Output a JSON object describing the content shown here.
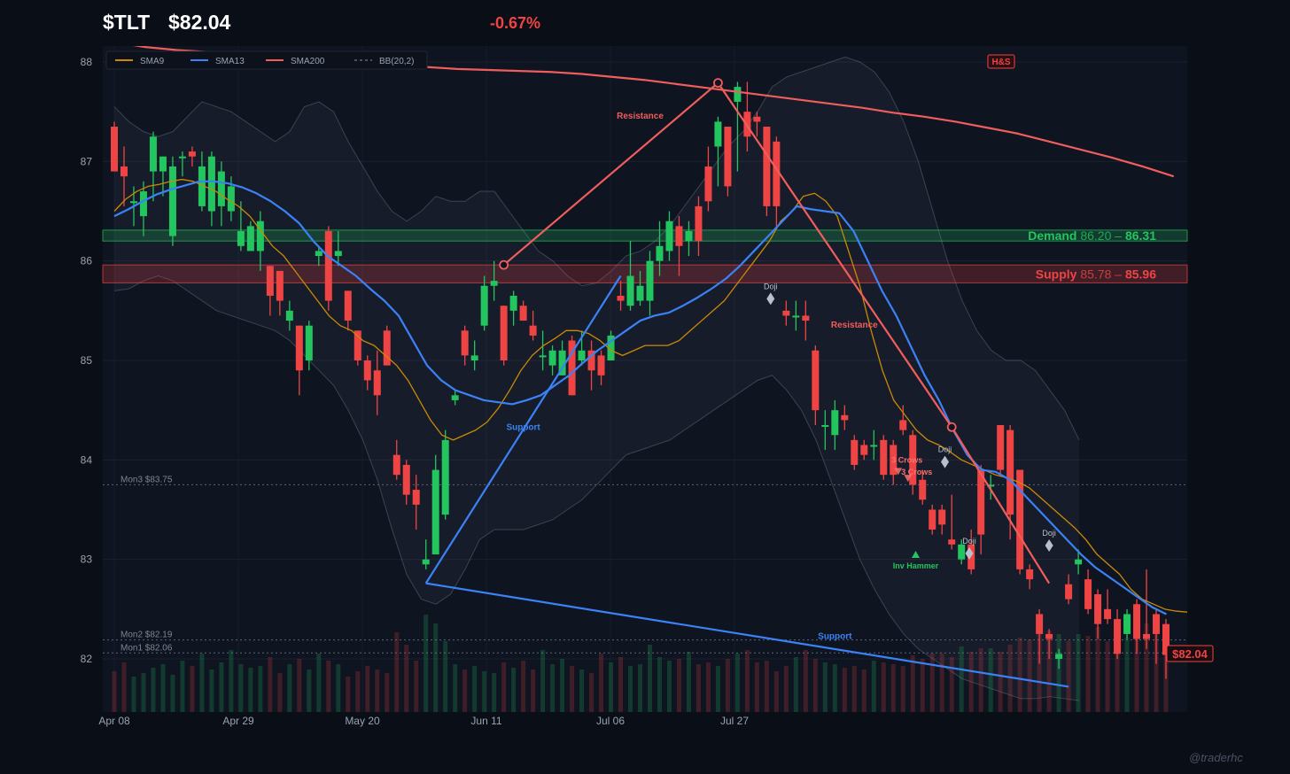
{
  "header": {
    "symbol": "$TLT",
    "price": "$82.04",
    "change": "-0.67%"
  },
  "watermark": "@traderhc",
  "colors": {
    "up": "#22c55e",
    "down": "#ef4444",
    "sma9": "#ca8a04",
    "sma13": "#3b82f6",
    "sma200": "#f05d5d",
    "bb": "#8b93a5",
    "demand": "#22c55e",
    "supply": "#ef4444"
  },
  "legend": [
    {
      "name": "SMA9",
      "color": "#ca8a04",
      "dash": false
    },
    {
      "name": "SMA13",
      "color": "#3b82f6",
      "dash": false
    },
    {
      "name": "SMA200",
      "color": "#f05d5d",
      "dash": false
    },
    {
      "name": "BB(20,2)",
      "color": "#8b93a5",
      "dash": true
    }
  ],
  "badge": "H&S",
  "chart_data": {
    "type": "candlestick",
    "x_tick_labels": [
      "Apr 08",
      "Apr 29",
      "May 20",
      "Jun 11",
      "Jul 06",
      "Jul 27"
    ],
    "x_tick_index": [
      0,
      14,
      28,
      42,
      56,
      70
    ],
    "y_ticks": [
      82,
      83,
      84,
      85,
      86,
      87,
      88
    ],
    "ylim": [
      81.48,
      88.15
    ],
    "candles": [
      [
        87.35,
        86.9,
        87.4,
        86.9
      ],
      [
        86.95,
        86.85,
        87.15,
        86.55
      ],
      [
        86.6,
        86.6,
        86.75,
        86.35
      ],
      [
        86.45,
        86.7,
        86.8,
        86.25
      ],
      [
        86.9,
        87.25,
        87.3,
        86.6
      ],
      [
        86.9,
        87.05,
        87.05,
        86.65
      ],
      [
        86.25,
        86.95,
        87.05,
        86.15
      ],
      [
        87.05,
        87.05,
        87.1,
        86.85
      ],
      [
        87.1,
        87.05,
        87.15,
        86.95
      ],
      [
        86.55,
        86.95,
        87.1,
        86.5
      ],
      [
        86.5,
        87.05,
        87.1,
        86.35
      ],
      [
        86.55,
        86.9,
        87.0,
        86.35
      ],
      [
        86.5,
        86.75,
        86.85,
        86.4
      ],
      [
        86.15,
        86.3,
        86.6,
        86.1
      ],
      [
        86.1,
        86.35,
        86.4,
        86.1
      ],
      [
        86.1,
        86.4,
        86.5,
        85.9
      ],
      [
        85.95,
        85.65,
        85.95,
        85.45
      ],
      [
        85.9,
        85.6,
        85.9,
        85.45
      ],
      [
        85.4,
        85.5,
        85.6,
        85.3
      ],
      [
        85.35,
        84.9,
        85.35,
        84.65
      ],
      [
        85.0,
        85.35,
        85.4,
        84.9
      ],
      [
        86.05,
        86.1,
        86.15,
        85.95
      ],
      [
        86.3,
        85.6,
        86.35,
        85.5
      ],
      [
        86.05,
        86.1,
        86.3,
        85.95
      ],
      [
        85.7,
        85.4,
        85.7,
        85.3
      ],
      [
        85.3,
        85.0,
        85.3,
        84.95
      ],
      [
        85.0,
        84.8,
        85.05,
        84.7
      ],
      [
        84.9,
        84.65,
        85.1,
        84.45
      ],
      [
        85.3,
        84.95,
        85.35,
        84.95
      ],
      [
        84.05,
        83.85,
        84.2,
        83.8
      ],
      [
        83.95,
        83.65,
        84.0,
        83.55
      ],
      [
        83.7,
        83.55,
        83.85,
        83.3
      ],
      [
        82.95,
        83.0,
        83.2,
        82.9
      ],
      [
        83.05,
        83.9,
        84.05,
        83.05
      ],
      [
        83.45,
        84.2,
        84.3,
        83.4
      ],
      [
        84.6,
        84.65,
        84.7,
        84.55
      ],
      [
        85.3,
        85.05,
        85.35,
        84.95
      ],
      [
        85.0,
        85.05,
        85.2,
        84.9
      ],
      [
        85.35,
        85.75,
        85.85,
        85.3
      ],
      [
        85.75,
        85.8,
        86.0,
        85.6
      ],
      [
        85.55,
        85.0,
        85.55,
        84.95
      ],
      [
        85.5,
        85.65,
        85.7,
        85.35
      ],
      [
        85.55,
        85.4,
        85.6,
        85.4
      ],
      [
        85.35,
        85.25,
        85.5,
        85.2
      ],
      [
        85.05,
        85.05,
        85.3,
        84.9
      ],
      [
        84.95,
        85.1,
        85.15,
        84.85
      ],
      [
        84.85,
        85.1,
        85.2,
        84.85
      ],
      [
        85.2,
        84.65,
        85.25,
        84.65
      ],
      [
        85.0,
        85.1,
        85.3,
        84.95
      ],
      [
        85.1,
        84.9,
        85.2,
        84.7
      ],
      [
        85.05,
        84.85,
        85.1,
        84.75
      ],
      [
        85.0,
        85.25,
        85.3,
        85.0
      ],
      [
        85.65,
        85.6,
        85.8,
        85.5
      ],
      [
        85.55,
        85.85,
        86.2,
        85.5
      ],
      [
        85.6,
        85.75,
        85.9,
        85.55
      ],
      [
        85.6,
        86.0,
        86.1,
        85.45
      ],
      [
        86.0,
        86.15,
        86.4,
        85.85
      ],
      [
        86.1,
        86.4,
        86.5,
        86.0
      ],
      [
        86.35,
        86.15,
        86.45,
        85.85
      ],
      [
        86.2,
        86.3,
        86.4,
        86.05
      ],
      [
        86.55,
        86.2,
        86.65,
        86.05
      ],
      [
        86.95,
        86.6,
        87.15,
        86.5
      ],
      [
        87.15,
        87.4,
        87.45,
        86.75
      ],
      [
        87.35,
        86.75,
        87.35,
        86.65
      ],
      [
        87.6,
        87.75,
        87.8,
        86.9
      ],
      [
        87.5,
        87.25,
        87.8,
        87.1
      ],
      [
        87.45,
        87.4,
        87.5,
        87.25
      ],
      [
        87.35,
        86.55,
        87.35,
        86.45
      ],
      [
        87.2,
        86.55,
        87.25,
        86.35
      ],
      [
        85.5,
        85.45,
        85.6,
        85.35
      ],
      [
        85.45,
        85.45,
        85.6,
        85.3
      ],
      [
        85.45,
        85.4,
        85.6,
        85.2
      ],
      [
        85.1,
        84.5,
        85.15,
        84.35
      ],
      [
        84.35,
        84.35,
        84.5,
        84.1
      ],
      [
        84.25,
        84.5,
        84.6,
        84.1
      ],
      [
        84.45,
        84.4,
        84.55,
        84.3
      ],
      [
        84.2,
        83.95,
        84.25,
        83.9
      ],
      [
        84.15,
        84.05,
        84.2,
        84.0
      ],
      [
        84.15,
        84.15,
        84.3,
        84.0
      ],
      [
        84.2,
        83.85,
        84.25,
        83.8
      ],
      [
        84.15,
        83.85,
        84.2,
        83.75
      ],
      [
        84.4,
        84.3,
        84.55,
        84.25
      ],
      [
        84.25,
        83.75,
        84.3,
        83.65
      ],
      [
        83.8,
        83.6,
        83.9,
        83.55
      ],
      [
        83.5,
        83.3,
        83.55,
        83.25
      ],
      [
        83.5,
        83.35,
        83.55,
        83.25
      ],
      [
        83.2,
        83.15,
        83.65,
        83.1
      ],
      [
        83.0,
        83.15,
        83.2,
        82.95
      ],
      [
        83.15,
        82.9,
        83.3,
        82.85
      ],
      [
        83.9,
        83.25,
        83.95,
        83.05
      ],
      [
        83.75,
        83.75,
        83.85,
        83.6
      ],
      [
        84.35,
        83.9,
        84.35,
        83.85
      ],
      [
        84.3,
        83.45,
        84.35,
        83.2
      ],
      [
        83.9,
        82.9,
        83.9,
        82.85
      ],
      [
        82.9,
        82.8,
        82.95,
        82.7
      ],
      [
        82.45,
        82.25,
        82.5,
        81.95
      ],
      [
        82.25,
        82.2,
        82.3,
        82.0
      ],
      [
        82.0,
        82.05,
        82.1,
        81.9
      ],
      [
        82.75,
        82.6,
        82.85,
        82.55
      ],
      [
        82.95,
        83.0,
        83.1,
        82.85
      ],
      [
        82.8,
        82.5,
        82.9,
        82.45
      ],
      [
        82.65,
        82.35,
        82.7,
        82.2
      ],
      [
        82.5,
        82.4,
        82.7,
        82.35
      ],
      [
        82.4,
        82.05,
        82.5,
        82.0
      ],
      [
        82.25,
        82.45,
        82.5,
        82.2
      ],
      [
        82.55,
        82.2,
        82.6,
        82.05
      ],
      [
        82.25,
        82.2,
        82.9,
        82.1
      ],
      [
        82.45,
        82.25,
        82.5,
        81.95
      ],
      [
        82.35,
        82.04,
        82.4,
        81.8
      ]
    ],
    "volume": [
      23,
      28,
      20,
      22,
      25,
      27,
      21,
      29,
      26,
      33,
      24,
      28,
      35,
      27,
      25,
      26,
      31,
      22,
      27,
      30,
      24,
      33,
      29,
      27,
      20,
      23,
      26,
      24,
      22,
      45,
      38,
      29,
      55,
      50,
      40,
      27,
      24,
      26,
      23,
      22,
      28,
      25,
      29,
      24,
      35,
      27,
      30,
      26,
      24,
      22,
      33,
      28,
      31,
      26,
      27,
      38,
      31,
      29,
      30,
      34,
      27,
      28,
      26,
      30,
      33,
      35,
      28,
      29,
      23,
      26,
      31,
      35,
      30,
      28,
      27,
      25,
      26,
      24,
      29,
      28,
      27,
      26,
      32,
      30,
      33,
      33,
      31,
      37,
      34,
      36,
      36,
      34,
      38,
      42,
      41,
      45,
      46,
      44,
      40,
      44,
      43,
      48,
      40,
      41,
      42,
      50,
      50,
      47,
      42
    ],
    "sma9": [
      86.5,
      86.62,
      86.7,
      86.75,
      86.77,
      86.8,
      86.82,
      86.8,
      86.75,
      86.7,
      86.62,
      86.55,
      86.45,
      86.3,
      86.15,
      86.05,
      85.9,
      85.75,
      85.6,
      85.45,
      85.35,
      85.3,
      85.2,
      85.15,
      85.05,
      84.95,
      84.8,
      84.6,
      84.4,
      84.25,
      84.2,
      84.25,
      84.3,
      84.38,
      84.52,
      84.7,
      84.9,
      85.05,
      85.15,
      85.22,
      85.3,
      85.3,
      85.27,
      85.2,
      85.1,
      85.05,
      85.1,
      85.15,
      85.15,
      85.15,
      85.2,
      85.3,
      85.4,
      85.5,
      85.6,
      85.75,
      85.9,
      86.05,
      86.2,
      86.4,
      86.5,
      86.65,
      86.68,
      86.6,
      86.45,
      86.1,
      85.75,
      85.3,
      84.9,
      84.6,
      84.45,
      84.3,
      84.2,
      84.15,
      84.08,
      84.0,
      83.95,
      83.9,
      83.85,
      83.82,
      83.78,
      83.72,
      83.62,
      83.52,
      83.42,
      83.32,
      83.2,
      83.05,
      82.95,
      82.85,
      82.7,
      82.6,
      82.55,
      82.5,
      82.48,
      82.47
    ],
    "sma13": [
      86.45,
      86.52,
      86.6,
      86.67,
      86.72,
      86.76,
      86.8,
      86.8,
      86.78,
      86.74,
      86.68,
      86.6,
      86.5,
      86.38,
      86.2,
      86.05,
      85.95,
      85.85,
      85.72,
      85.6,
      85.45,
      85.2,
      84.95,
      84.8,
      84.7,
      84.65,
      84.6,
      84.58,
      84.56,
      84.6,
      84.65,
      84.75,
      84.85,
      84.98,
      85.1,
      85.2,
      85.3,
      85.4,
      85.45,
      85.48,
      85.55,
      85.63,
      85.72,
      85.82,
      85.95,
      86.1,
      86.25,
      86.4,
      86.55,
      86.52,
      86.5,
      86.48,
      86.3,
      86.0,
      85.7,
      85.45,
      85.15,
      84.85,
      84.6,
      84.3,
      84.05,
      83.9,
      83.88,
      83.8,
      83.65,
      83.5,
      83.35,
      83.2,
      83.05,
      82.92,
      82.82,
      82.72,
      82.62,
      82.52,
      82.45
    ],
    "sma200": [
      88.2,
      88.15,
      88.12,
      88.1,
      88.08,
      88.05,
      88.02,
      88.0,
      87.98,
      87.96,
      87.95,
      87.93,
      87.92,
      87.91,
      87.9,
      87.88,
      87.85,
      87.82,
      87.78,
      87.74,
      87.7,
      87.66,
      87.62,
      87.58,
      87.54,
      87.49,
      87.45,
      87.4,
      87.34,
      87.28,
      87.2,
      87.12,
      87.04,
      86.95,
      86.85
    ],
    "bb_upper": [
      87.55,
      87.4,
      87.3,
      87.25,
      87.3,
      87.45,
      87.6,
      87.55,
      87.5,
      87.4,
      87.3,
      87.2,
      87.3,
      87.55,
      87.6,
      87.5,
      87.2,
      86.95,
      86.7,
      86.5,
      86.4,
      86.5,
      86.65,
      86.6,
      86.6,
      86.7,
      86.7,
      86.5,
      86.3,
      86.1,
      86.0,
      85.85,
      85.75,
      85.78,
      85.9,
      86.05,
      86.1,
      86.2,
      86.35,
      86.55,
      86.75,
      86.95,
      87.15,
      87.3,
      87.5,
      87.75,
      87.85,
      87.9,
      87.95,
      88.0,
      88.05,
      88.0,
      87.9,
      87.7,
      87.4,
      87.0,
      86.5,
      86.0,
      85.6,
      85.3,
      85.1,
      85.0,
      85.0,
      84.9,
      84.7,
      84.5,
      84.2
    ],
    "bb_lower": [
      85.7,
      85.72,
      85.8,
      85.85,
      85.8,
      85.7,
      85.6,
      85.5,
      85.45,
      85.4,
      85.35,
      85.3,
      85.2,
      85.05,
      84.9,
      84.75,
      84.5,
      84.2,
      83.8,
      83.3,
      82.85,
      82.6,
      82.55,
      82.65,
      82.9,
      83.2,
      83.3,
      83.3,
      83.3,
      83.35,
      83.4,
      83.5,
      83.6,
      83.75,
      83.9,
      84.05,
      84.1,
      84.15,
      84.2,
      84.3,
      84.4,
      84.5,
      84.6,
      84.7,
      84.8,
      84.85,
      84.7,
      84.5,
      84.2,
      83.8,
      83.4,
      83.0,
      82.7,
      82.45,
      82.25,
      82.1,
      82.0,
      81.9,
      81.8,
      81.75,
      81.7,
      81.65,
      81.6,
      81.6,
      81.62,
      81.6,
      81.58
    ],
    "zones": [
      {
        "name": "Demand",
        "low": 86.2,
        "high": 86.31,
        "label_prefix": "Demand",
        "label_range": "86.20 – ",
        "label_high": "86.31",
        "color": "#22c55e"
      },
      {
        "name": "Supply",
        "low": 85.78,
        "high": 85.96,
        "label_prefix": "Supply",
        "label_range": "85.78 – ",
        "label_high": "85.96",
        "color": "#ef4444"
      }
    ],
    "levels": [
      {
        "label": "Mon3 $83.75",
        "value": 83.75
      },
      {
        "label": "Mon2 $82.19",
        "value": 82.19
      },
      {
        "label": "Mon1 $82.06",
        "value": 82.06
      }
    ],
    "trendlines": [
      {
        "label": "Resistance",
        "color": "#f05d5d",
        "points": [
          [
            40.0,
            85.96
          ],
          [
            62.0,
            87.79
          ]
        ]
      },
      {
        "label": "Resistance",
        "color": "#f05d5d",
        "points": [
          [
            62.0,
            87.79
          ],
          [
            86.0,
            84.33
          ],
          [
            96.0,
            82.76
          ]
        ]
      },
      {
        "label": "Support",
        "color": "#3b82f6",
        "points": [
          [
            32.0,
            82.76
          ],
          [
            52.0,
            85.85
          ]
        ]
      },
      {
        "label": "Support",
        "color": "#3b82f6",
        "points": [
          [
            32.0,
            82.76
          ],
          [
            98.0,
            81.72
          ]
        ]
      }
    ],
    "trend_labels": [
      {
        "text": "Resistance",
        "idx": 54.0,
        "value": 87.43,
        "color": "#f05d5d"
      },
      {
        "text": "Resistance",
        "idx": 76.0,
        "value": 85.33,
        "color": "#f05d5d"
      },
      {
        "text": "Support",
        "idx": 42.0,
        "value": 84.3,
        "color": "#3b82f6"
      },
      {
        "text": "Support",
        "idx": 74.0,
        "value": 82.2,
        "color": "#3b82f6"
      }
    ],
    "pivots": [
      {
        "idx": 40.0,
        "value": 85.96
      },
      {
        "idx": 62.0,
        "value": 87.79
      },
      {
        "idx": 86.0,
        "value": 84.33
      }
    ],
    "patterns": [
      {
        "text": "Doji",
        "idx": 67.4,
        "value": 85.62,
        "shape": "diamond",
        "color": "#b9c0cc"
      },
      {
        "text": "Doji",
        "idx": 85.3,
        "value": 83.98,
        "shape": "diamond",
        "color": "#b9c0cc"
      },
      {
        "text": "Doji",
        "idx": 87.8,
        "value": 83.06,
        "shape": "diamond",
        "color": "#b9c0cc"
      },
      {
        "text": "Doji",
        "idx": 96.0,
        "value": 83.14,
        "shape": "diamond",
        "color": "#b9c0cc"
      },
      {
        "text": "3 Crows",
        "idx": 80.5,
        "value": 83.92,
        "shape": "tri-down",
        "color": "#f87171"
      },
      {
        "text": "3 Crows",
        "idx": 81.5,
        "value": 83.85,
        "shape": "tri-down",
        "color": "#f87171"
      },
      {
        "text": "Inv Hammer",
        "idx": 82.3,
        "value": 83.05,
        "shape": "tri-up",
        "color": "#22c55e"
      }
    ],
    "last_price_label": "$82.04"
  }
}
